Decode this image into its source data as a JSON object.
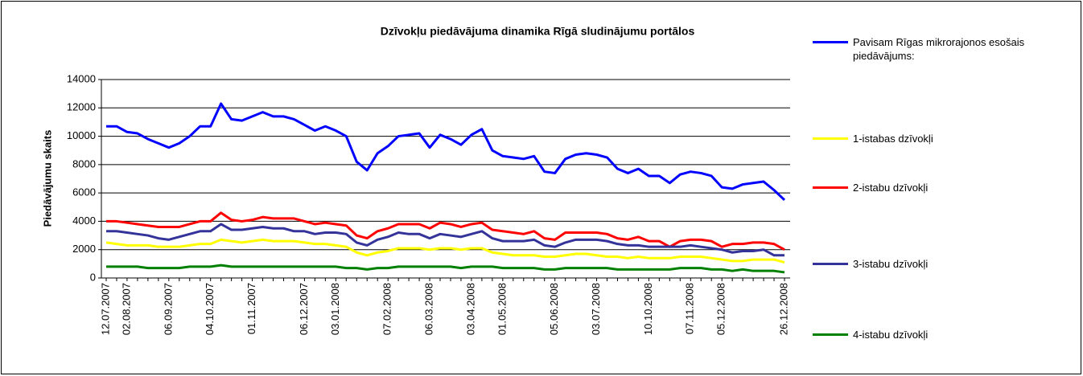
{
  "chart_data": {
    "type": "line",
    "title": "Dzīvokļu piedāvājuma dinamika Rīgā sludinājumu portālos",
    "y_label": "Piedāvājumu skaits",
    "categories": [
      "12.07.2007",
      null,
      "02.08.2007",
      null,
      null,
      null,
      "06.09.2007",
      null,
      null,
      null,
      "04.10.2007",
      null,
      null,
      null,
      "01.11.2007",
      null,
      null,
      null,
      null,
      "06.12.2007",
      null,
      null,
      "03.01.2008",
      null,
      null,
      null,
      null,
      "07.02.2008",
      null,
      null,
      null,
      "06.03.2008",
      null,
      null,
      null,
      "03.04.2008",
      null,
      null,
      "01.05.2008",
      null,
      null,
      null,
      null,
      "05.06.2008",
      null,
      null,
      null,
      "03.07.2008",
      null,
      null,
      null,
      null,
      "10.10.2008",
      null,
      null,
      null,
      "07.11.2008",
      null,
      null,
      "05.12.2008",
      null,
      null,
      null,
      null,
      null,
      "26.12.2008"
    ],
    "series": [
      {
        "name": "Pavisam Rīgas mikrorajonos esošais piedāvājums:",
        "color": "#0000ff",
        "values": [
          10700,
          10700,
          10300,
          10200,
          9800,
          9500,
          9200,
          9500,
          10000,
          10700,
          10700,
          12300,
          11200,
          11100,
          11400,
          11700,
          11400,
          11400,
          11200,
          10800,
          10400,
          10700,
          10400,
          10000,
          8200,
          7600,
          8800,
          9300,
          10000,
          10100,
          10200,
          9200,
          10100,
          9800,
          9400,
          10100,
          10500,
          9000,
          8600,
          8500,
          8400,
          8600,
          7500,
          7400,
          8400,
          8700,
          8800,
          8700,
          8500,
          7700,
          7400,
          7700,
          7200,
          7200,
          6700,
          7300,
          7500,
          7400,
          7200,
          6400,
          6300,
          6600,
          6700,
          6800,
          6200,
          5500
        ]
      },
      {
        "name": "1-istabas dzīvokļi",
        "color": "#ffff00",
        "values": [
          2500,
          2400,
          2300,
          2300,
          2300,
          2200,
          2200,
          2200,
          2300,
          2400,
          2400,
          2700,
          2600,
          2500,
          2600,
          2700,
          2600,
          2600,
          2600,
          2500,
          2400,
          2400,
          2300,
          2200,
          1800,
          1600,
          1800,
          1900,
          2100,
          2100,
          2100,
          2000,
          2100,
          2100,
          2000,
          2100,
          2100,
          1800,
          1700,
          1600,
          1600,
          1600,
          1500,
          1500,
          1600,
          1700,
          1700,
          1600,
          1500,
          1500,
          1400,
          1500,
          1400,
          1400,
          1400,
          1500,
          1500,
          1500,
          1400,
          1300,
          1200,
          1200,
          1300,
          1300,
          1300,
          1100
        ]
      },
      {
        "name": "2-istabu dzīvokļi",
        "color": "#ff0000",
        "values": [
          4000,
          4000,
          3900,
          3800,
          3700,
          3600,
          3600,
          3600,
          3800,
          4000,
          4000,
          4600,
          4100,
          4000,
          4100,
          4300,
          4200,
          4200,
          4200,
          4000,
          3800,
          3900,
          3800,
          3700,
          3000,
          2800,
          3300,
          3500,
          3800,
          3800,
          3800,
          3500,
          3900,
          3800,
          3600,
          3800,
          3900,
          3400,
          3300,
          3200,
          3100,
          3300,
          2800,
          2700,
          3200,
          3200,
          3200,
          3200,
          3100,
          2800,
          2700,
          2900,
          2600,
          2600,
          2200,
          2600,
          2700,
          2700,
          2600,
          2200,
          2400,
          2400,
          2500,
          2500,
          2400,
          2000
        ]
      },
      {
        "name": "3-istabu dzīvokļi",
        "color": "#333399",
        "values": [
          3300,
          3300,
          3200,
          3100,
          3000,
          2800,
          2700,
          2900,
          3100,
          3300,
          3300,
          3800,
          3400,
          3400,
          3500,
          3600,
          3500,
          3500,
          3300,
          3300,
          3100,
          3200,
          3200,
          3100,
          2500,
          2300,
          2700,
          2900,
          3200,
          3100,
          3100,
          2800,
          3100,
          3000,
          2900,
          3100,
          3300,
          2800,
          2600,
          2600,
          2600,
          2700,
          2300,
          2200,
          2500,
          2700,
          2700,
          2700,
          2600,
          2400,
          2300,
          2300,
          2200,
          2200,
          2200,
          2200,
          2300,
          2200,
          2100,
          2000,
          1800,
          1900,
          1900,
          2000,
          1600,
          1600
        ]
      },
      {
        "name": "4-istabu dzīvokļi",
        "color": "#008000",
        "values": [
          800,
          800,
          800,
          800,
          700,
          700,
          700,
          700,
          800,
          800,
          800,
          900,
          800,
          800,
          800,
          800,
          800,
          800,
          800,
          800,
          800,
          800,
          800,
          700,
          700,
          600,
          700,
          700,
          800,
          800,
          800,
          800,
          800,
          800,
          700,
          800,
          800,
          800,
          700,
          700,
          700,
          700,
          600,
          600,
          700,
          700,
          700,
          700,
          700,
          600,
          600,
          600,
          600,
          600,
          600,
          700,
          700,
          700,
          600,
          600,
          500,
          600,
          500,
          500,
          500,
          400
        ]
      }
    ],
    "ylim": [
      0,
      14000
    ],
    "yticks": [
      0,
      2000,
      4000,
      6000,
      8000,
      10000,
      12000,
      14000
    ],
    "grid": true
  }
}
